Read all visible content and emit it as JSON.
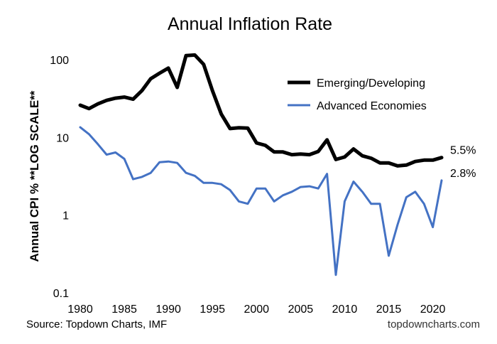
{
  "chart_data": {
    "type": "line",
    "title": "Annual Inflation Rate",
    "xlabel": "",
    "ylabel": "Annual CPI %  **LOG SCALE**",
    "y_scale": "log",
    "ylim": [
      0.1,
      100
    ],
    "xlim": [
      1980,
      2021
    ],
    "y_ticks": [
      {
        "value": 0.1,
        "label": "0.1"
      },
      {
        "value": 1,
        "label": "1"
      },
      {
        "value": 10,
        "label": "10"
      },
      {
        "value": 100,
        "label": "100"
      }
    ],
    "x_ticks": [
      {
        "value": 1980,
        "label": "1980"
      },
      {
        "value": 1985,
        "label": "1985"
      },
      {
        "value": 1990,
        "label": "1990"
      },
      {
        "value": 1995,
        "label": "1995"
      },
      {
        "value": 2000,
        "label": "2000"
      },
      {
        "value": 2005,
        "label": "2005"
      },
      {
        "value": 2010,
        "label": "2010"
      },
      {
        "value": 2015,
        "label": "2015"
      },
      {
        "value": 2020,
        "label": "2020"
      }
    ],
    "grid": false,
    "legend_position": "top-right",
    "x": [
      1980,
      1981,
      1982,
      1983,
      1984,
      1985,
      1986,
      1987,
      1988,
      1989,
      1990,
      1991,
      1992,
      1993,
      1994,
      1995,
      1996,
      1997,
      1998,
      1999,
      2000,
      2001,
      2002,
      2003,
      2004,
      2005,
      2006,
      2007,
      2008,
      2009,
      2010,
      2011,
      2012,
      2013,
      2014,
      2015,
      2016,
      2017,
      2018,
      2019,
      2020,
      2021
    ],
    "series": [
      {
        "name": "Emerging/Developing",
        "color": "#000000",
        "values": [
          26,
          23.5,
          27,
          30,
          32,
          33,
          31,
          40,
          57,
          67,
          78,
          44,
          113,
          115,
          87,
          40,
          20,
          13,
          13.3,
          13.2,
          8.5,
          7.9,
          6.5,
          6.5,
          6,
          6.1,
          6,
          6.6,
          9.3,
          5.2,
          5.6,
          7.1,
          5.8,
          5.4,
          4.7,
          4.7,
          4.3,
          4.4,
          4.9,
          5.1,
          5.1,
          5.5
        ],
        "end_label": "5.5%"
      },
      {
        "name": "Advanced Economies",
        "color": "#4472c4",
        "values": [
          13.5,
          11,
          8.2,
          6,
          6.4,
          5.3,
          2.9,
          3.1,
          3.5,
          4.8,
          4.9,
          4.7,
          3.5,
          3.2,
          2.6,
          2.6,
          2.5,
          2.1,
          1.5,
          1.4,
          2.2,
          2.2,
          1.5,
          1.8,
          2.0,
          2.3,
          2.35,
          2.2,
          3.4,
          0.17,
          1.5,
          2.7,
          2.0,
          1.4,
          1.4,
          0.3,
          0.75,
          1.7,
          2.0,
          1.4,
          0.7,
          2.8
        ],
        "end_label": "2.8%"
      }
    ],
    "source": "Source: Topdown Charts, IMF",
    "credit": "topdowncharts.com"
  }
}
